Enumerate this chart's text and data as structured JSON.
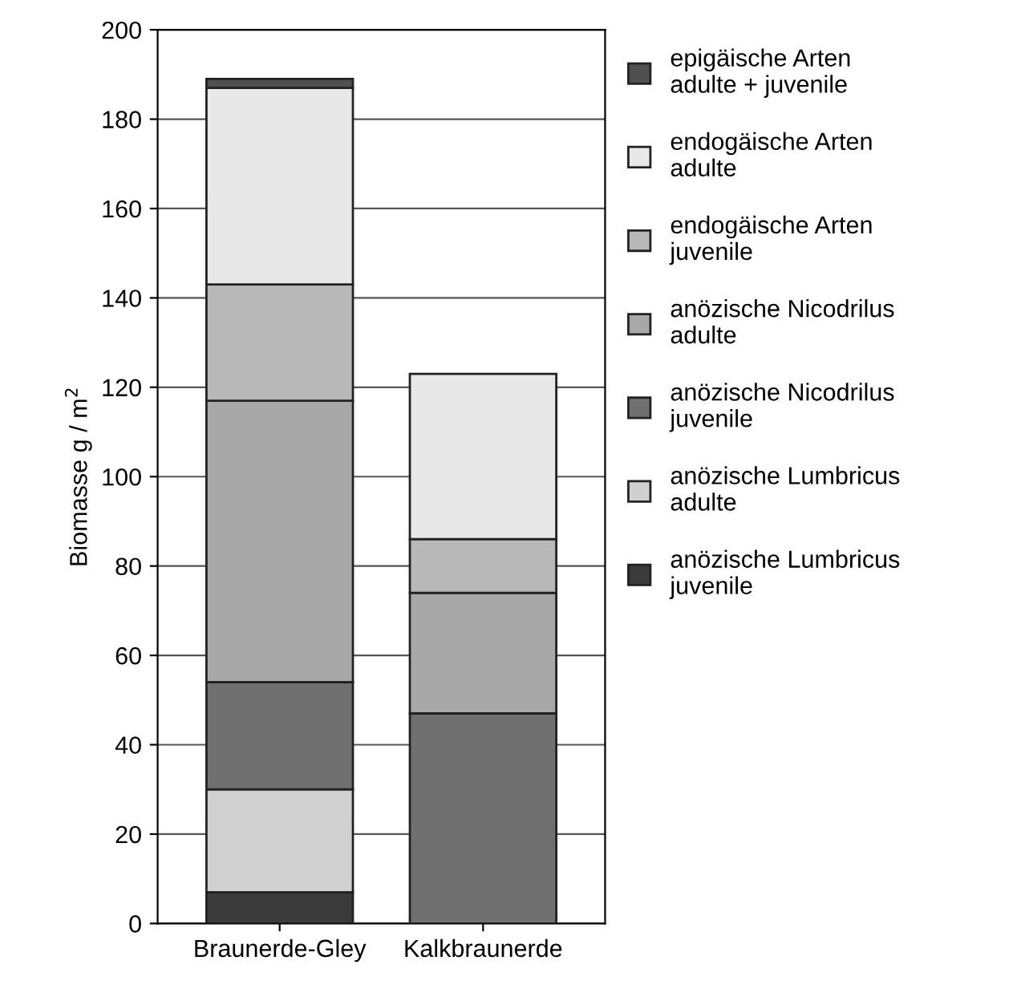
{
  "chart_data": {
    "type": "bar",
    "stacked": true,
    "ylabel": "Biomasse g / m$^{2}$",
    "categories": [
      "Braunerde-Gley",
      "Kalkbraunerde"
    ],
    "series": [
      {
        "name": "anözische Lumbricus\njuvenile",
        "color": "#3a3a3a",
        "values": [
          7,
          0
        ]
      },
      {
        "name": "anözische Lumbricus\nadulte",
        "color": "#d0d0d0",
        "values": [
          23,
          0
        ]
      },
      {
        "name": "anözische Nicodrilus\njuvenile",
        "color": "#707070",
        "values": [
          24,
          47
        ]
      },
      {
        "name": "anözische Nicodrilus\nadulte",
        "color": "#a8a8a8",
        "values": [
          63,
          27
        ]
      },
      {
        "name": "endogäische Arten\njuvenile",
        "color": "#b8b8b8",
        "values": [
          26,
          12
        ]
      },
      {
        "name": "endogäische Arten\nadulte",
        "color": "#e8e8e8",
        "values": [
          44,
          37
        ]
      },
      {
        "name": "epigäische Arten\nadulte + juvenile",
        "color": "#505050",
        "values": [
          2,
          0
        ]
      }
    ],
    "ylim": [
      0,
      200
    ],
    "yticks": [
      0,
      20,
      40,
      60,
      80,
      100,
      120,
      140,
      160,
      180,
      200
    ],
    "grid": "y",
    "legend": "right"
  }
}
